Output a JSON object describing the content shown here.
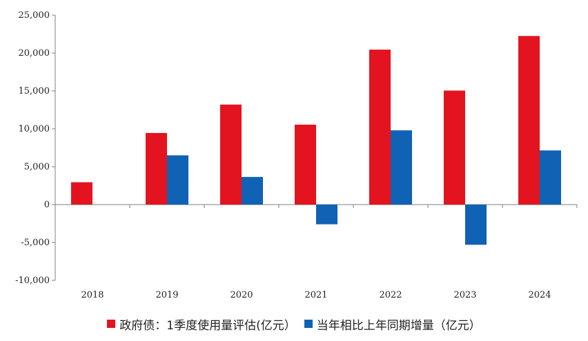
{
  "chart_data": {
    "type": "bar",
    "categories": [
      "2018",
      "2019",
      "2020",
      "2021",
      "2022",
      "2023",
      "2024"
    ],
    "series": [
      {
        "name": "政府债：1季度使用量评估(亿元）",
        "color": "#e3141f",
        "values": [
          2950,
          9450,
          13200,
          10550,
          20450,
          15050,
          22250
        ]
      },
      {
        "name": "当年相比上年同期增量（亿元）",
        "color": "#0f62b4",
        "values": [
          null,
          6500,
          3650,
          -2600,
          9800,
          -5300,
          7150
        ]
      }
    ],
    "ylim": [
      -10000,
      25000
    ],
    "yticks": [
      -10000,
      -5000,
      0,
      5000,
      10000,
      15000,
      20000,
      25000
    ],
    "ytick_labels": [
      "-10,000",
      "-5,000",
      "0",
      "5,000",
      "10,000",
      "15,000",
      "20,000",
      "25,000"
    ],
    "title": "",
    "xlabel": "",
    "ylabel": "",
    "legend_position": "bottom"
  }
}
